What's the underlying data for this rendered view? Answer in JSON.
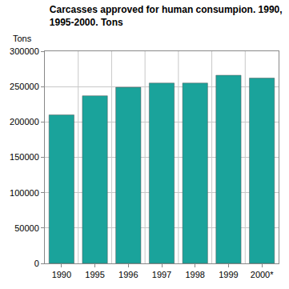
{
  "chart_data": {
    "type": "bar",
    "title": "Carcasses approved for human consumpion. 1990,\n1995-2000. Tons",
    "ylabel": "Tons",
    "categories": [
      "1990",
      "1995",
      "1996",
      "1997",
      "1998",
      "1999",
      "2000*"
    ],
    "values": [
      210000,
      237000,
      249000,
      255000,
      255000,
      266000,
      262000
    ],
    "color": "#1aa39b",
    "ylim": [
      0,
      300000
    ],
    "yticks": [
      0,
      50000,
      100000,
      150000,
      200000,
      250000,
      300000
    ],
    "grid": true
  }
}
